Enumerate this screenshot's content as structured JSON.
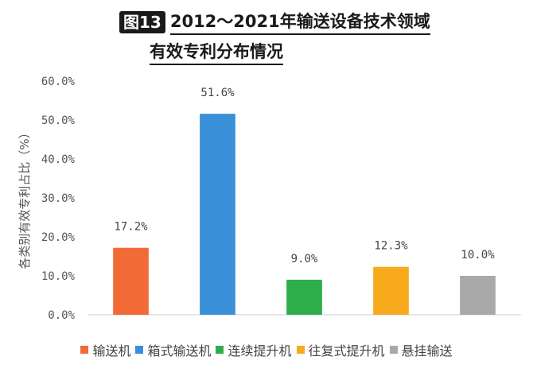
{
  "title": {
    "badge": "图13",
    "line1": "2012～2021年输送设备技术领域",
    "line2": "有效专利分布情况"
  },
  "chart_data": {
    "type": "bar",
    "ylabel": "各类别有效专利占比（%）",
    "xlabel": "",
    "ylim": [
      0,
      60
    ],
    "yticks": [
      0,
      10,
      20,
      30,
      40,
      50,
      60
    ],
    "ytick_labels": [
      "0.0%",
      "10.0%",
      "20.0%",
      "30.0%",
      "40.0%",
      "50.0%",
      "60.0%"
    ],
    "grid": false,
    "legend_position": "bottom",
    "categories": [
      "输送机",
      "箱式输送机",
      "连续提升机",
      "往复式提升机",
      "悬挂输送"
    ],
    "values": [
      17.2,
      51.6,
      9.0,
      12.3,
      10.0
    ],
    "data_labels": [
      "17.2%",
      "51.6%",
      "9.0%",
      "12.3%",
      "10.0%"
    ],
    "colors": [
      "#f26a35",
      "#3a8fd9",
      "#2eae4b",
      "#f7aa1c",
      "#a9a9a9"
    ]
  }
}
